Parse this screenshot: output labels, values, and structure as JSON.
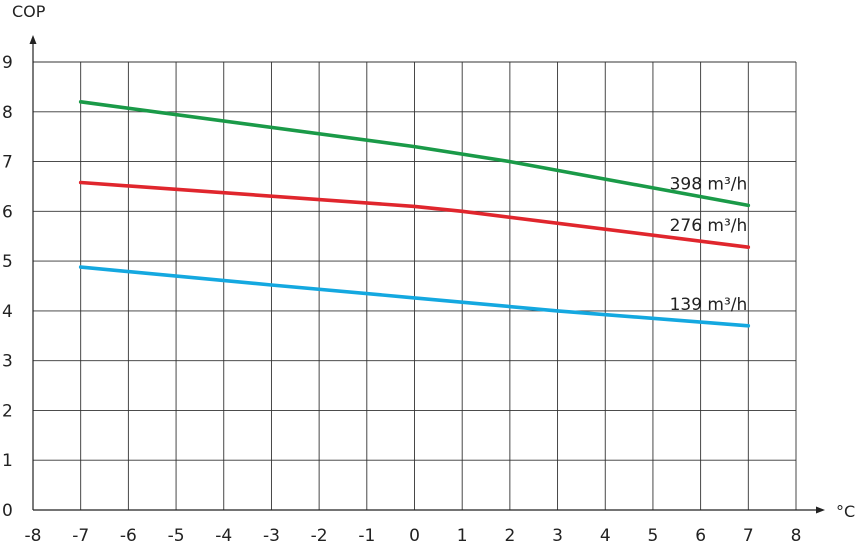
{
  "chart_data": {
    "type": "line",
    "title": "",
    "xlabel": "°C",
    "ylabel": "COP",
    "xlim": [
      -8,
      8
    ],
    "ylim": [
      0,
      9
    ],
    "grid": true,
    "x_ticks": [
      "-8",
      "-7",
      "-6",
      "-5",
      "-4",
      "-3",
      "-2",
      "-1",
      "0",
      "1",
      "2",
      "3",
      "4",
      "5",
      "6",
      "7",
      "8"
    ],
    "y_ticks": [
      "0",
      "1",
      "2",
      "3",
      "4",
      "5",
      "6",
      "7",
      "8",
      "9"
    ],
    "series": [
      {
        "name": "398 m³/h",
        "color": "#1a9a48",
        "points": [
          [
            -7,
            8.2
          ],
          [
            0,
            7.3
          ],
          [
            2,
            7.0
          ],
          [
            7,
            6.12
          ]
        ]
      },
      {
        "name": "276 m³/h",
        "color": "#e0262d",
        "points": [
          [
            -7,
            6.58
          ],
          [
            0,
            6.1
          ],
          [
            1,
            6.0
          ],
          [
            7,
            5.28
          ]
        ]
      },
      {
        "name": "139 m³/h",
        "color": "#14a8e0",
        "points": [
          [
            -7,
            4.88
          ],
          [
            -3,
            4.52
          ],
          [
            0,
            4.26
          ],
          [
            3,
            4.0
          ],
          [
            7,
            3.7
          ]
        ]
      }
    ]
  }
}
